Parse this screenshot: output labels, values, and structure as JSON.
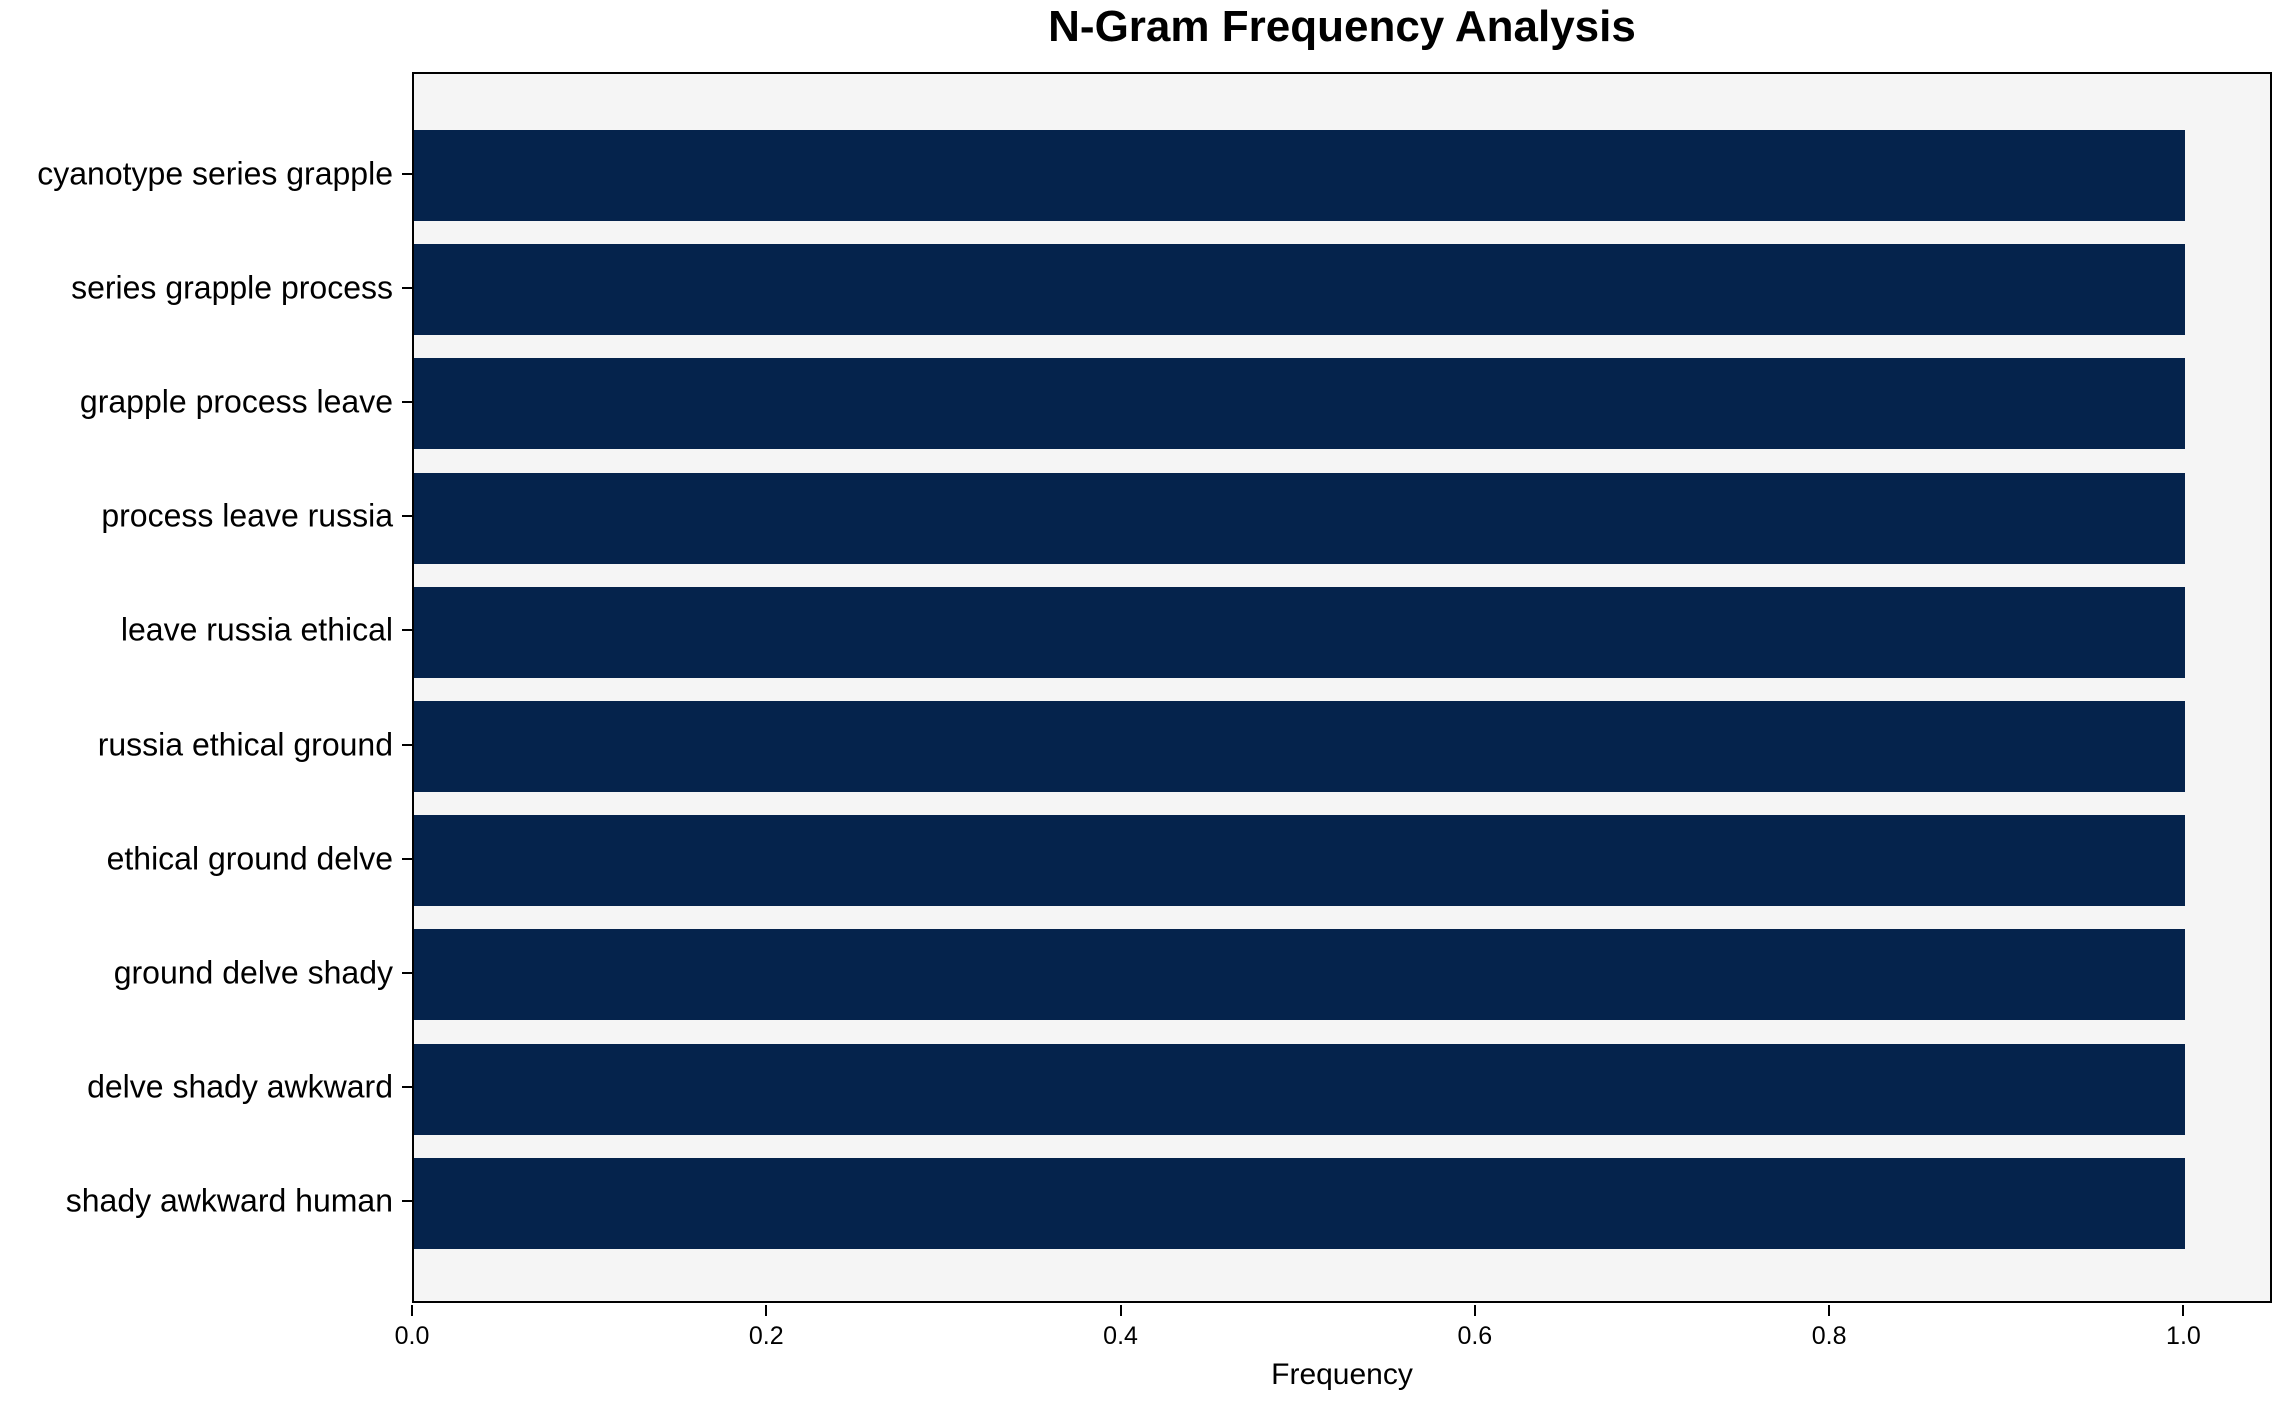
{
  "chart_data": {
    "type": "bar",
    "orientation": "horizontal",
    "title": "N-Gram Frequency Analysis",
    "xlabel": "Frequency",
    "ylabel": "",
    "categories": [
      "cyanotype series grapple",
      "series grapple process",
      "grapple process leave",
      "process leave russia",
      "leave russia ethical",
      "russia ethical ground",
      "ethical ground delve",
      "ground delve shady",
      "delve shady awkward",
      "shady awkward human"
    ],
    "values": [
      1.0,
      1.0,
      1.0,
      1.0,
      1.0,
      1.0,
      1.0,
      1.0,
      1.0,
      1.0
    ],
    "xlim": [
      0,
      1.05
    ],
    "xticks": [
      0.0,
      0.2,
      0.4,
      0.6,
      0.8,
      1.0
    ],
    "xtick_labels": [
      "0.0",
      "0.2",
      "0.4",
      "0.6",
      "0.8",
      "1.0"
    ],
    "grid": false,
    "legend": null,
    "colors": {
      "bar": "#05234c",
      "plot_background": "#f5f5f5",
      "figure_background": "#ffffff",
      "axis": "#000000",
      "text": "#000000"
    }
  }
}
